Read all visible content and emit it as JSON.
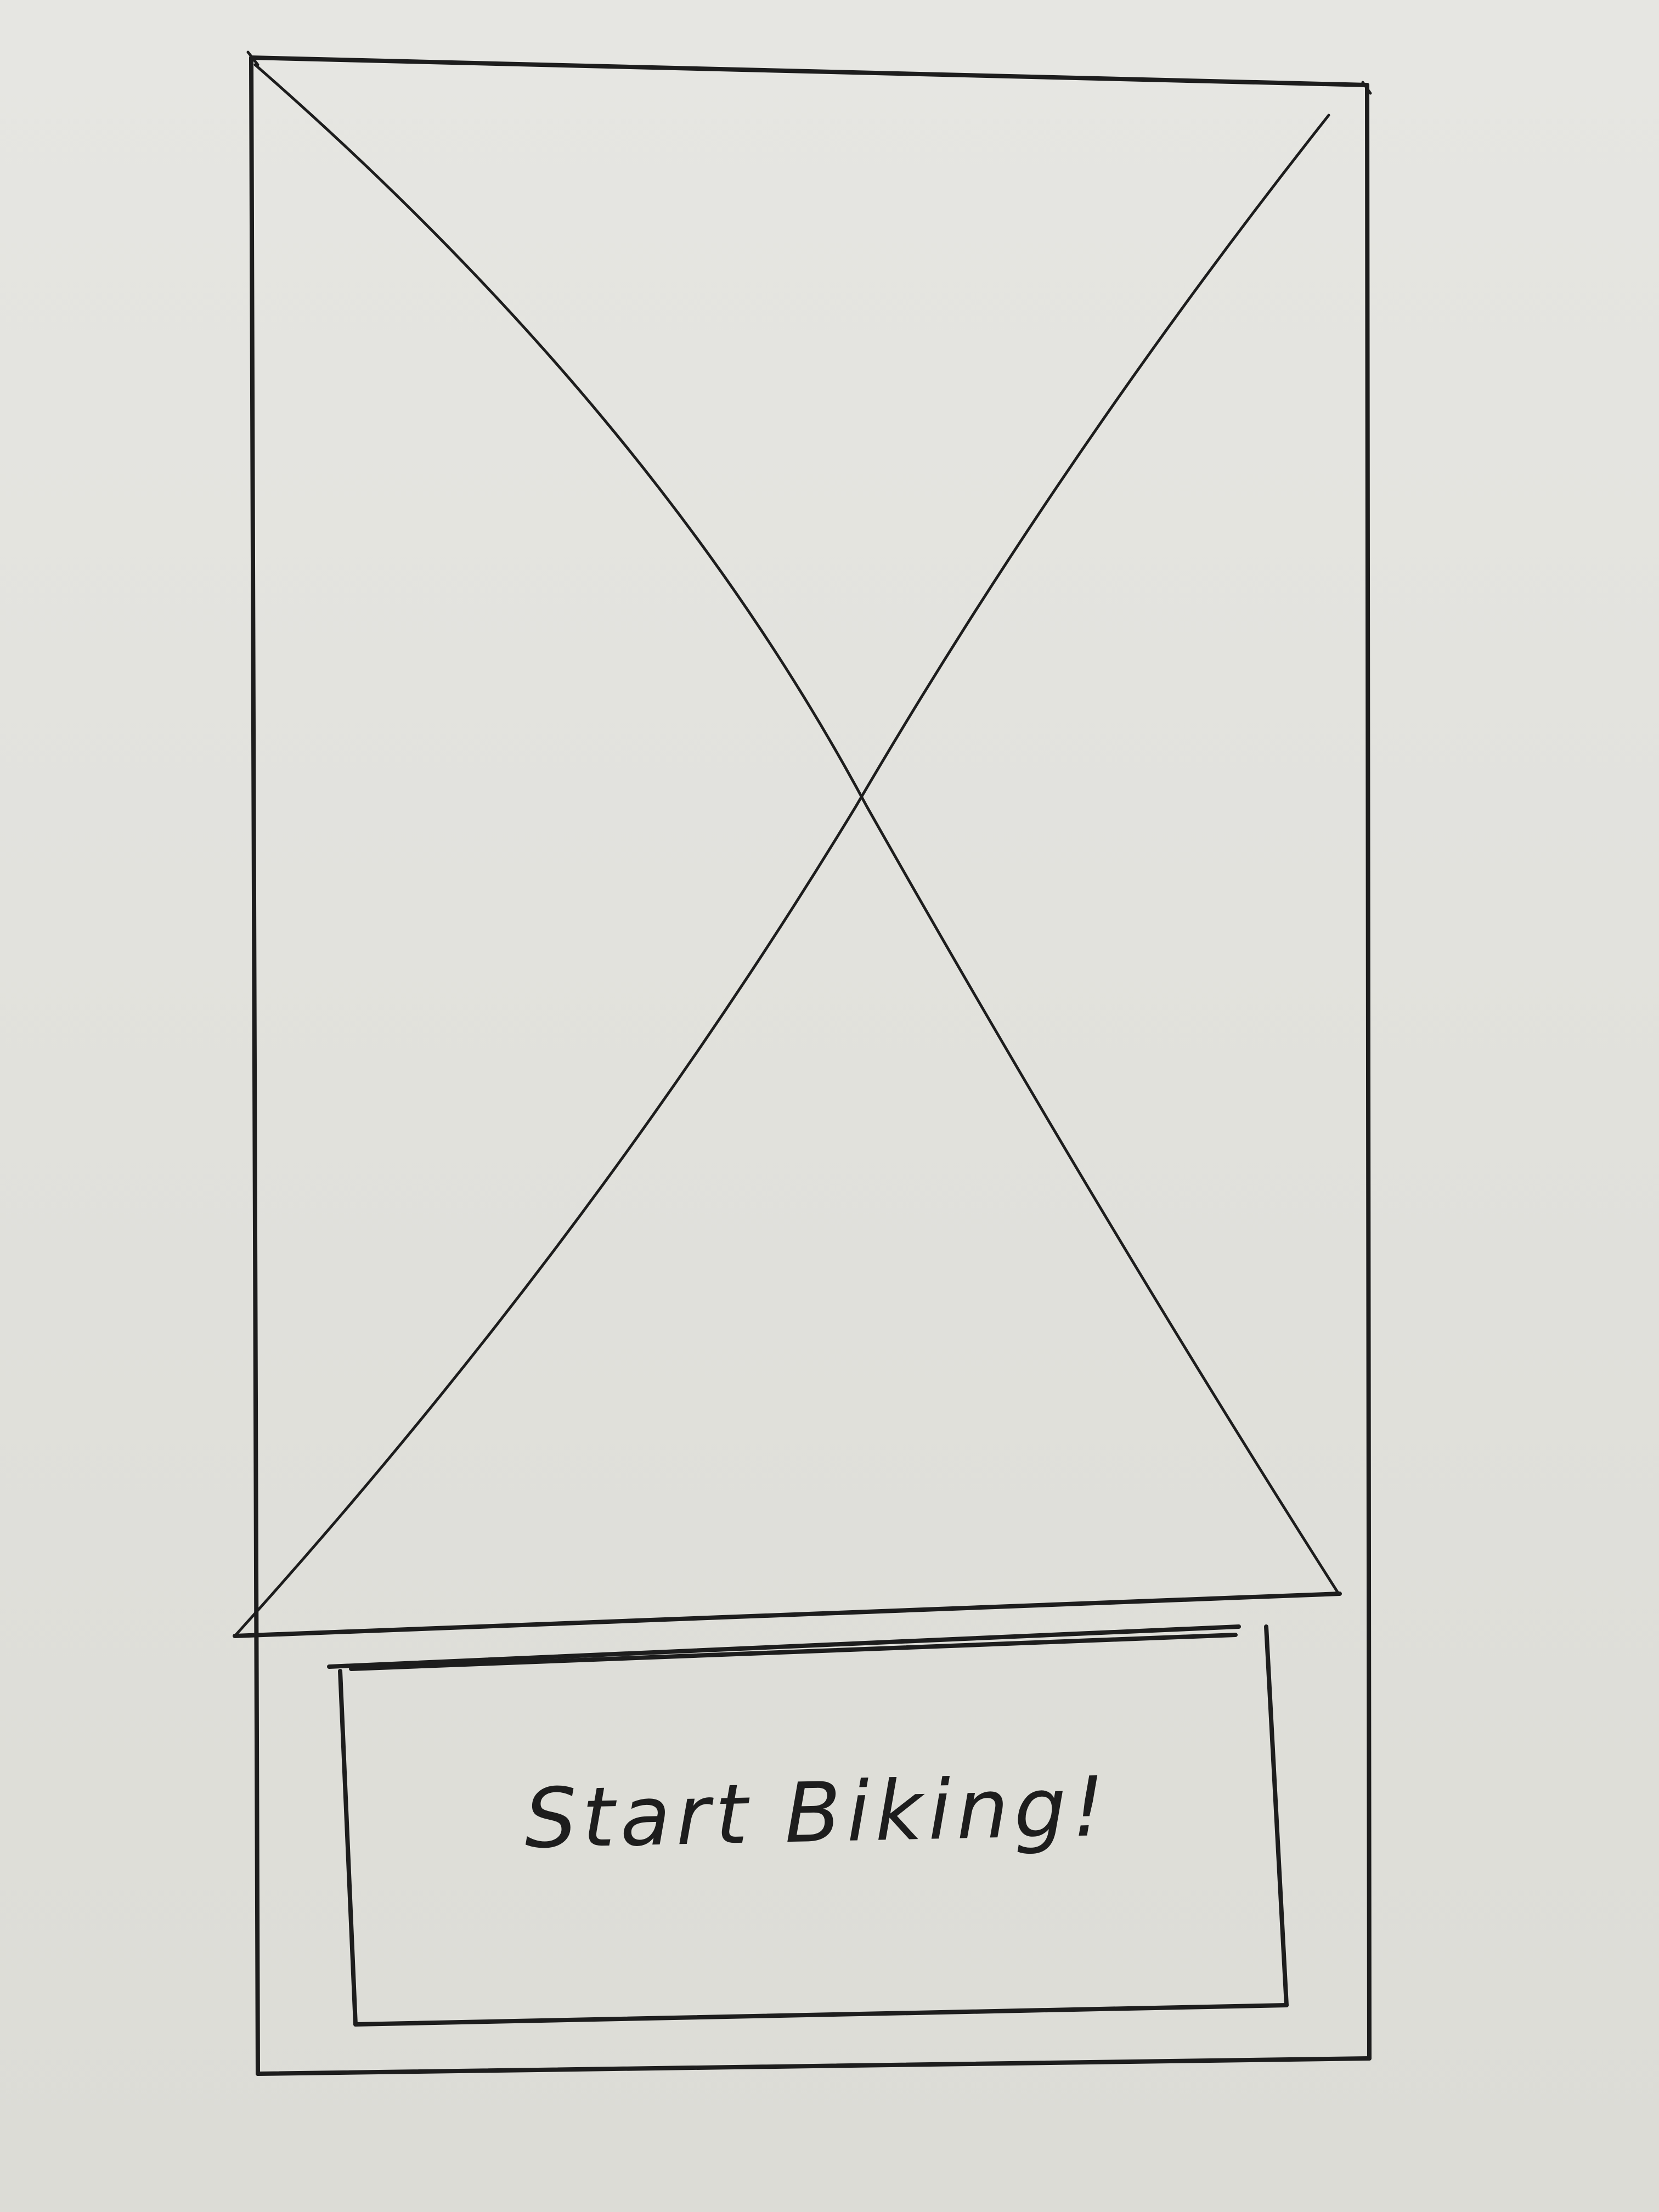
{
  "hero_image": {
    "icon": "image-placeholder-icon"
  },
  "cta": {
    "label": "Start Biking!"
  }
}
